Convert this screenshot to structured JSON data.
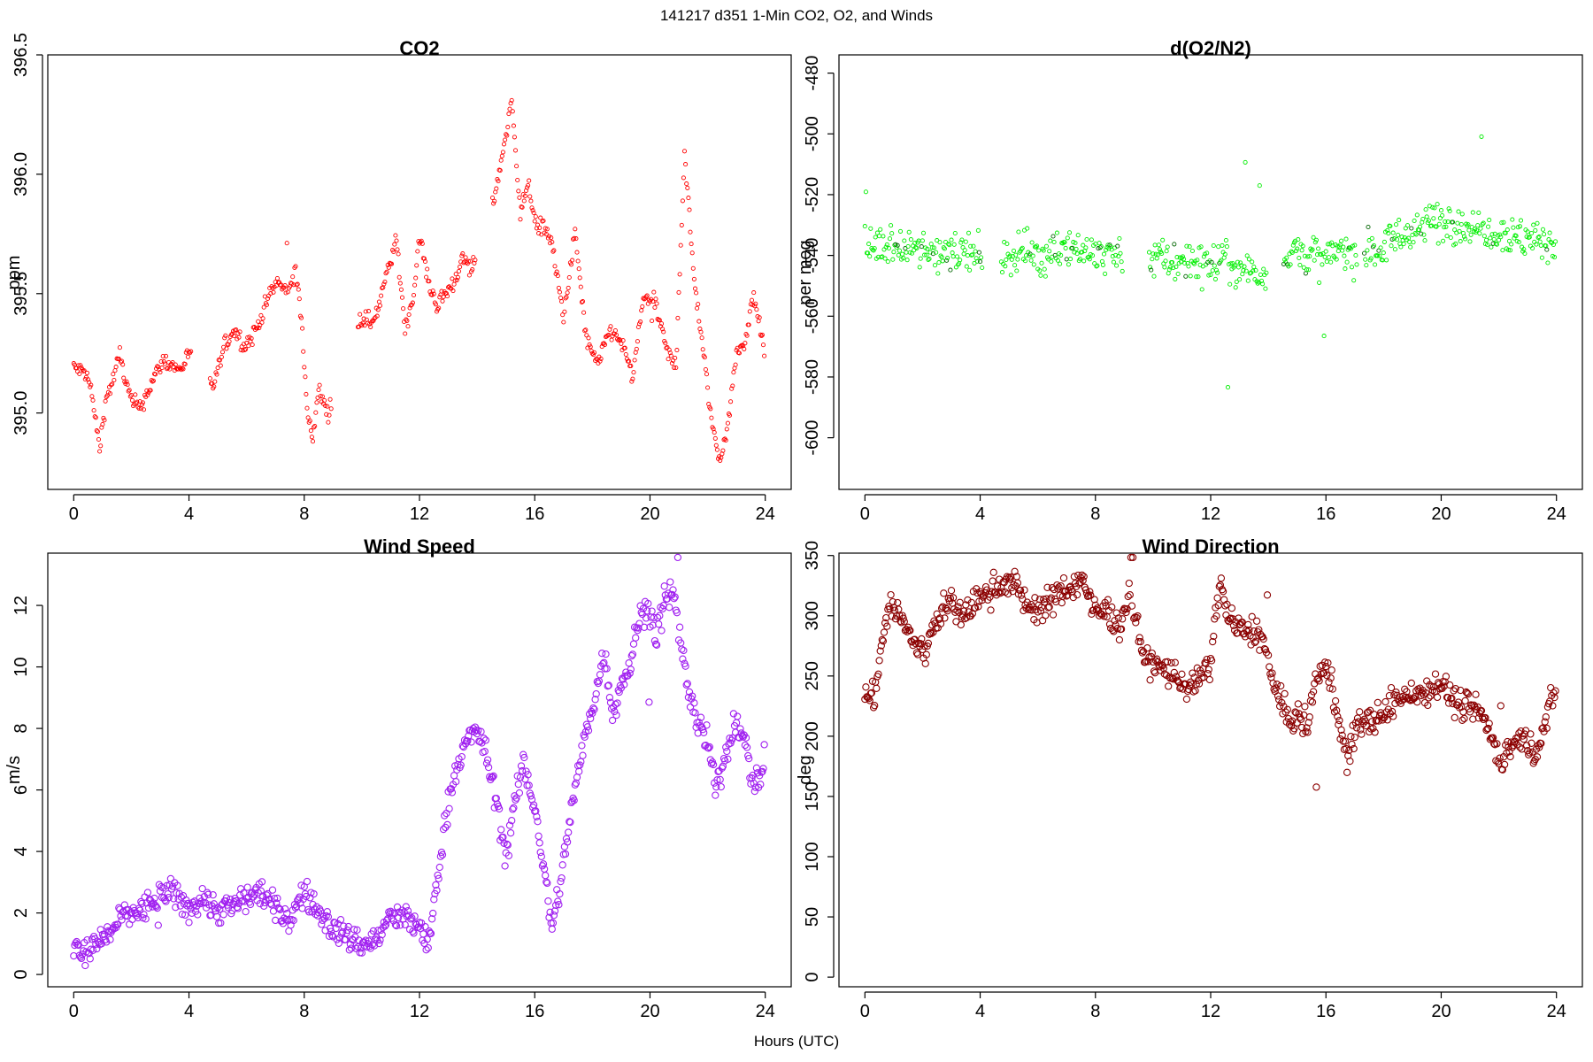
{
  "figure": {
    "suptitle": "141217   d351   1-Min CO2, O2, and Winds",
    "xlabel": "Hours (UTC)"
  },
  "chart_data": [
    {
      "id": "co2",
      "type": "scatter",
      "title": "CO2",
      "ylabel": "ppm",
      "color": "#ff0000",
      "marker_size": "small",
      "xlim": [
        -0.9,
        24.9
      ],
      "ylim": [
        394.68,
        396.5
      ],
      "xticks": [
        0,
        4,
        8,
        12,
        16,
        20,
        24
      ],
      "yticks": [
        395.0,
        395.5,
        396.0,
        396.5
      ],
      "ytick_labels": [
        "395.0",
        "395.5",
        "396.0",
        "396.5"
      ],
      "gaps": [
        [
          4.1,
          4.7
        ],
        [
          8.95,
          9.85
        ],
        [
          13.95,
          14.5
        ]
      ],
      "series": [
        {
          "x": [
            0,
            0.4,
            0.6,
            0.9,
            1.1,
            1.4,
            1.6,
            1.8,
            2.0,
            2.3,
            2.6,
            2.8,
            3.1,
            3.4,
            3.7,
            4.0,
            4.8,
            5.0,
            5.3,
            5.6,
            5.9,
            6.2,
            6.5,
            6.8,
            7.1,
            7.4,
            7.7,
            7.9,
            8.1,
            8.3,
            8.5,
            8.8,
            9.9,
            10.3,
            10.6,
            10.9,
            11.2,
            11.5,
            11.8,
            12.0,
            12.3,
            12.6,
            12.9,
            13.2,
            13.5,
            13.8,
            14.6,
            14.9,
            15.2,
            15.5,
            15.8,
            16.1,
            16.3,
            16.6,
            17.0,
            17.4,
            17.8,
            18.2,
            18.6,
            19.0,
            19.4,
            19.8,
            20.2,
            20.6,
            20.9,
            21.2,
            21.5,
            21.8,
            22.1,
            22.4,
            22.7,
            23.0,
            23.3,
            23.6,
            24.0
          ],
          "y": [
            395.19,
            395.17,
            395.1,
            394.85,
            395.05,
            395.15,
            395.25,
            395.13,
            395.05,
            395.02,
            395.1,
            395.15,
            395.22,
            395.2,
            395.18,
            395.25,
            395.1,
            395.18,
            395.3,
            395.35,
            395.28,
            395.32,
            395.4,
            395.5,
            395.55,
            395.5,
            395.6,
            395.4,
            395.0,
            394.9,
            395.1,
            395.0,
            395.4,
            395.38,
            395.45,
            395.6,
            395.72,
            395.35,
            395.5,
            395.75,
            395.55,
            395.45,
            395.5,
            395.55,
            395.65,
            395.6,
            395.9,
            396.1,
            396.3,
            395.85,
            395.95,
            395.75,
            395.8,
            395.7,
            395.4,
            395.75,
            395.3,
            395.2,
            395.35,
            395.3,
            395.15,
            395.5,
            395.45,
            395.25,
            395.2,
            396.1,
            395.6,
            395.3,
            395.0,
            394.8,
            394.95,
            395.25,
            395.3,
            395.5,
            395.25
          ]
        }
      ]
    },
    {
      "id": "o2",
      "type": "scatter",
      "title": "d(O2/N2)",
      "ylabel": "per meg",
      "color": "#00ee00",
      "marker_size": "small",
      "xlim": [
        -0.9,
        24.9
      ],
      "ylim": [
        -617,
        -474
      ],
      "xticks": [
        0,
        4,
        8,
        12,
        16,
        20,
        24
      ],
      "yticks": [
        -600,
        -580,
        -560,
        -540,
        -520,
        -500,
        -480
      ],
      "ytick_labels": [
        "-600",
        "-580",
        "-560",
        "-540",
        "-520",
        "-500",
        "-480"
      ],
      "gaps": [
        [
          4.1,
          4.7
        ],
        [
          8.95,
          9.85
        ],
        [
          13.95,
          14.5
        ],
        [
          17.1,
          17.3
        ]
      ],
      "series": [
        {
          "x": [
            0,
            1,
            2,
            3,
            4,
            4.8,
            5.5,
            6,
            7,
            8,
            9,
            10,
            11,
            12,
            13,
            14,
            14.6,
            15,
            15.5,
            16,
            16.5,
            17,
            18,
            18.5,
            19,
            19.5,
            20,
            21,
            22,
            23,
            24
          ],
          "y": [
            -538,
            -537,
            -539,
            -538,
            -540,
            -541,
            -538,
            -540,
            -537,
            -539,
            -540,
            -541,
            -542,
            -543,
            -544,
            -546,
            -541,
            -538,
            -540,
            -542,
            -538,
            -540,
            -537,
            -534,
            -532,
            -530,
            -528,
            -530,
            -532,
            -535,
            -536
          ]
        }
      ]
    },
    {
      "id": "wspd",
      "type": "scatter",
      "title": "Wind Speed",
      "ylabel": "m/s",
      "color": "#a020f0",
      "marker_size": "large",
      "xlim": [
        -0.9,
        24.9
      ],
      "ylim": [
        -0.4,
        13.7
      ],
      "xticks": [
        0,
        4,
        8,
        12,
        16,
        20,
        24
      ],
      "yticks": [
        0,
        2,
        4,
        6,
        8,
        10,
        12
      ],
      "ytick_labels": [
        "0",
        "2",
        "4",
        "6",
        "8",
        "10",
        "12"
      ],
      "gaps": [],
      "series": [
        {
          "x": [
            0,
            0.4,
            0.8,
            1.2,
            1.6,
            2.0,
            2.4,
            2.8,
            3.2,
            3.6,
            4.0,
            4.5,
            5.0,
            5.5,
            6.0,
            6.5,
            7.0,
            7.5,
            8.0,
            8.5,
            9.0,
            9.5,
            10.0,
            10.5,
            11.0,
            11.5,
            12.0,
            12.3,
            12.6,
            12.9,
            13.2,
            13.6,
            14.0,
            14.4,
            14.7,
            15.0,
            15.3,
            15.6,
            16.0,
            16.3,
            16.6,
            16.9,
            17.2,
            17.5,
            17.8,
            18.1,
            18.4,
            18.7,
            19.0,
            19.3,
            19.6,
            19.9,
            20.2,
            20.5,
            20.8,
            21.1,
            21.4,
            21.7,
            22.0,
            22.3,
            22.6,
            22.9,
            23.2,
            23.5,
            23.8,
            24.0
          ],
          "y": [
            1.0,
            0.6,
            1.0,
            1.3,
            1.8,
            2.0,
            2.1,
            2.4,
            2.7,
            2.5,
            2.1,
            2.5,
            2.1,
            2.2,
            2.5,
            2.7,
            2.1,
            1.8,
            2.7,
            2.0,
            1.5,
            1.2,
            1.0,
            1.1,
            1.9,
            1.8,
            1.6,
            0.8,
            3.0,
            5.0,
            6.5,
            7.5,
            8.0,
            6.8,
            5.5,
            3.8,
            5.5,
            6.8,
            5.5,
            3.5,
            1.5,
            3.0,
            5.0,
            6.5,
            8.0,
            9.0,
            10.5,
            8.5,
            9.5,
            10.0,
            11.5,
            12.0,
            11.0,
            12.0,
            12.5,
            10.5,
            9.0,
            8.0,
            7.5,
            6.0,
            7.0,
            8.2,
            8.0,
            6.5,
            6.2,
            7.4
          ]
        }
      ]
    },
    {
      "id": "wdir",
      "type": "scatter",
      "title": "Wind Direction",
      "ylabel": "deg",
      "color": "#8b0000",
      "marker_size": "large",
      "xlim": [
        -0.9,
        24.9
      ],
      "ylim": [
        -8,
        352
      ],
      "xticks": [
        0,
        4,
        8,
        12,
        16,
        20,
        24
      ],
      "yticks": [
        0,
        50,
        100,
        150,
        200,
        250,
        300,
        350
      ],
      "ytick_labels": [
        "0",
        "50",
        "100",
        "150",
        "200",
        "250",
        "300",
        "350"
      ],
      "gaps": [],
      "series": [
        {
          "x": [
            0,
            0.3,
            0.6,
            0.9,
            1.2,
            1.5,
            1.8,
            2.1,
            2.4,
            2.7,
            3.0,
            3.3,
            3.6,
            4.0,
            4.4,
            4.8,
            5.2,
            5.6,
            6.0,
            6.4,
            6.8,
            7.2,
            7.6,
            8.0,
            8.4,
            8.8,
            9.2,
            9.6,
            10.0,
            10.4,
            10.8,
            11.2,
            11.6,
            12.0,
            12.3,
            12.6,
            12.9,
            13.2,
            13.5,
            13.8,
            14.1,
            14.4,
            14.7,
            15.0,
            15.3,
            15.6,
            15.9,
            16.2,
            16.5,
            16.8,
            17.1,
            17.4,
            17.7,
            18.0,
            18.4,
            18.8,
            19.2,
            19.6,
            20.0,
            20.4,
            20.8,
            21.2,
            21.6,
            22.0,
            22.4,
            22.8,
            23.2,
            23.6,
            24.0
          ],
          "y": [
            235,
            230,
            280,
            310,
            300,
            285,
            275,
            270,
            295,
            305,
            310,
            300,
            305,
            315,
            320,
            330,
            325,
            310,
            305,
            310,
            320,
            325,
            330,
            300,
            305,
            290,
            320,
            270,
            260,
            255,
            250,
            240,
            245,
            260,
            330,
            300,
            290,
            285,
            290,
            280,
            250,
            230,
            210,
            220,
            205,
            240,
            255,
            250,
            200,
            180,
            215,
            210,
            215,
            215,
            230,
            235,
            235,
            240,
            245,
            230,
            225,
            225,
            210,
            180,
            190,
            200,
            185,
            210,
            240
          ]
        }
      ]
    }
  ]
}
